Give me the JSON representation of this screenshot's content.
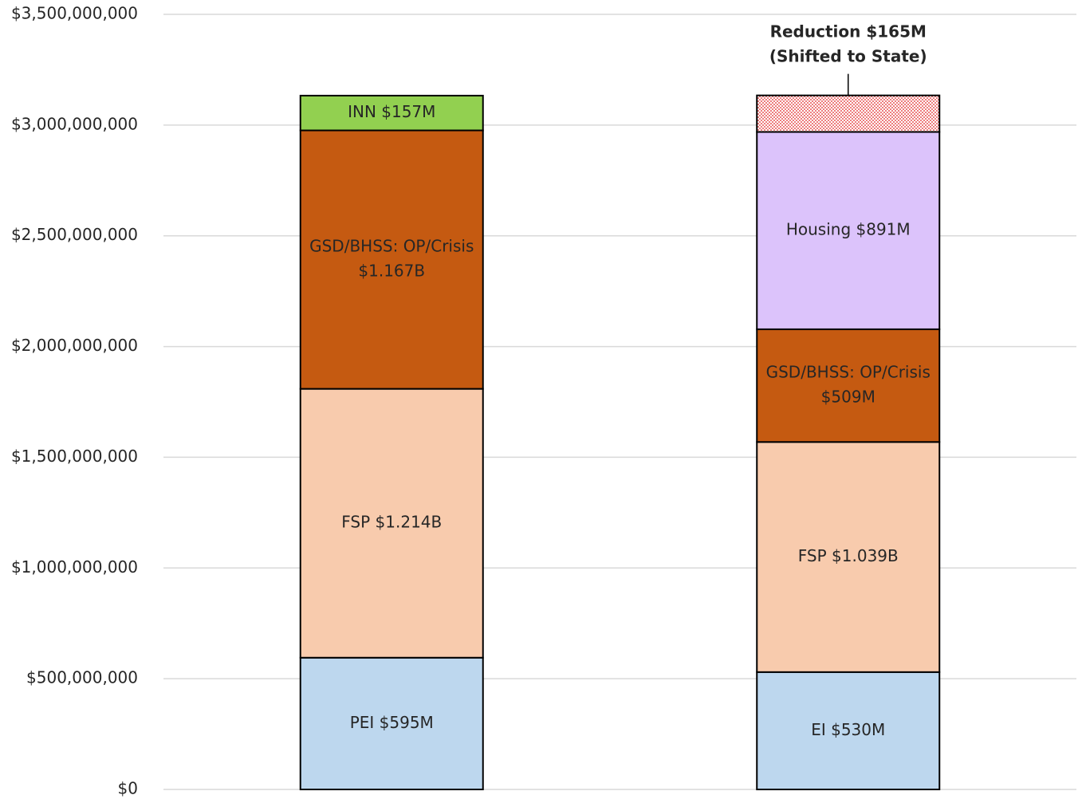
{
  "chart_data": {
    "type": "stacked_bar",
    "categories": [
      null,
      null
    ],
    "ylim": [
      0,
      3500000000
    ],
    "yticks": [
      {
        "value": 0,
        "label": "$0"
      },
      {
        "value": 500000000,
        "label": "$500,000,000"
      },
      {
        "value": 1000000000,
        "label": "$1,000,000,000"
      },
      {
        "value": 1500000000,
        "label": "$1,500,000,000"
      },
      {
        "value": 2000000000,
        "label": "$2,000,000,000"
      },
      {
        "value": 2500000000,
        "label": "$2,500,000,000"
      },
      {
        "value": 3000000000,
        "label": "$3,000,000,000"
      },
      {
        "value": 3500000000,
        "label": "$3,500,000,000"
      }
    ],
    "grid": true,
    "series": [
      {
        "color": "#bdd7ee",
        "values": [
          595000000,
          530000000
        ],
        "value_labels": [
          "PEI $595M",
          "EI $530M"
        ]
      },
      {
        "color": "#f8cbad",
        "values": [
          1214000000,
          1039000000
        ],
        "value_labels": [
          "FSP  $1.214B",
          "FSP  $1.039B"
        ]
      },
      {
        "color": "#c55a11",
        "values": [
          1167000000,
          509000000
        ],
        "value_labels": [
          [
            "GSD/BHSS: OP/Crisis",
            "$1.167B"
          ],
          [
            "GSD/BHSS: OP/Crisis",
            "$509M"
          ]
        ]
      },
      {
        "color": "#92d050",
        "values": [
          157000000,
          null
        ],
        "value_labels": [
          "INN $157M",
          null
        ]
      },
      {
        "color": "#dcc3fb",
        "values": [
          null,
          891000000
        ],
        "value_labels": [
          null,
          "Housing  $891M"
        ]
      },
      {
        "color": "#e02020",
        "pattern": "dots",
        "label_position": "above",
        "values": [
          null,
          165000000
        ],
        "value_labels": [
          null,
          [
            "Reduction $165M",
            "(Shifted to State)"
          ]
        ]
      }
    ]
  }
}
